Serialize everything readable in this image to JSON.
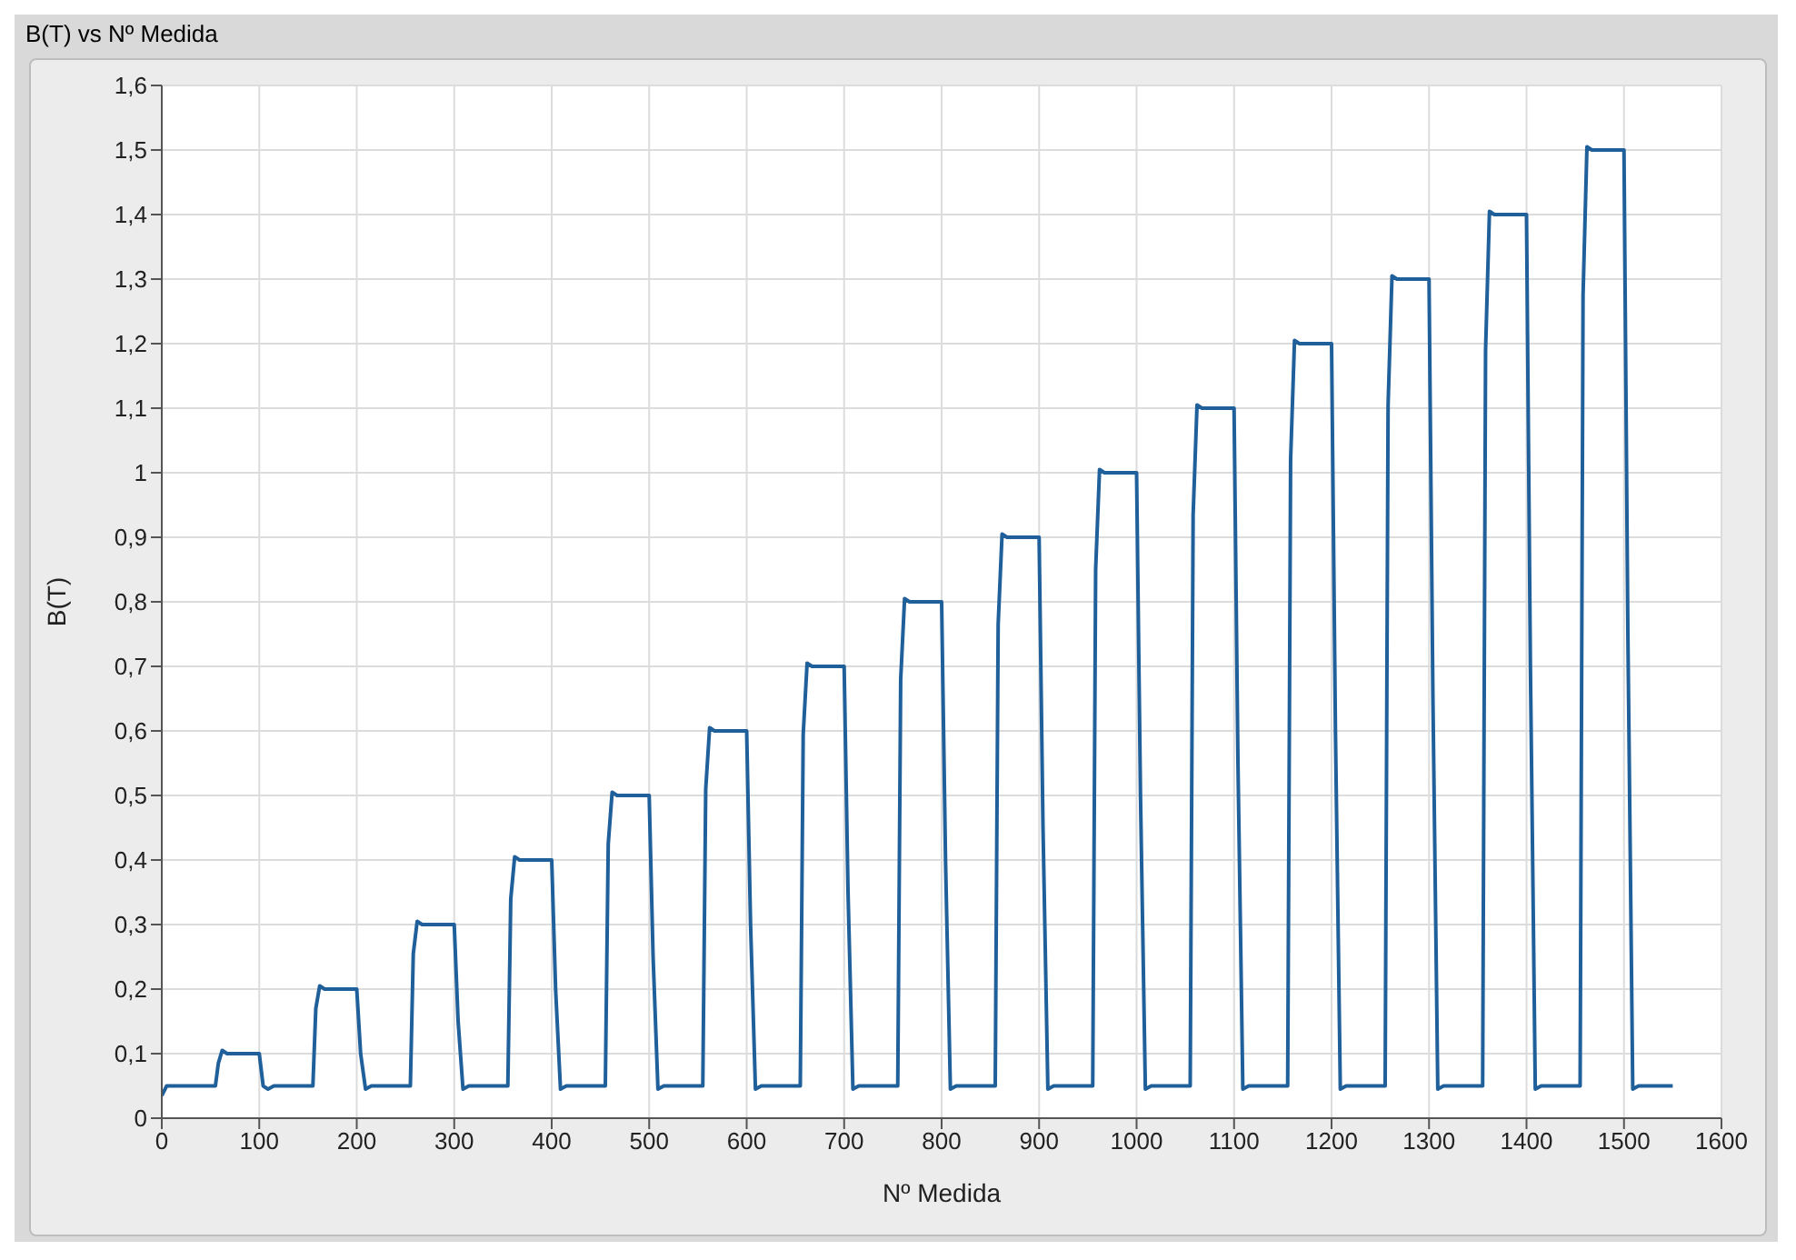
{
  "chart_data": {
    "type": "line",
    "title": "B(T) vs Nº Medida",
    "xlabel": "Nº Medida",
    "ylabel": "B(T)",
    "x": [
      0,
      5,
      55,
      58,
      62,
      67,
      100,
      104,
      109,
      115,
      155,
      158,
      162,
      167,
      200,
      204,
      209,
      215,
      255,
      258,
      262,
      267,
      300,
      304,
      309,
      315,
      355,
      358,
      362,
      367,
      400,
      404,
      409,
      415,
      455,
      458,
      462,
      467,
      500,
      504,
      509,
      515,
      555,
      558,
      562,
      567,
      600,
      604,
      609,
      615,
      655,
      658,
      662,
      667,
      700,
      704,
      709,
      715,
      755,
      758,
      762,
      767,
      800,
      804,
      809,
      815,
      855,
      858,
      862,
      867,
      900,
      904,
      909,
      915,
      955,
      958,
      962,
      967,
      1000,
      1004,
      1009,
      1015,
      1055,
      1058,
      1062,
      1067,
      1100,
      1104,
      1109,
      1115,
      1155,
      1158,
      1162,
      1167,
      1200,
      1204,
      1209,
      1215,
      1255,
      1258,
      1262,
      1267,
      1300,
      1304,
      1309,
      1315,
      1355,
      1358,
      1362,
      1367,
      1400,
      1404,
      1409,
      1415,
      1455,
      1458,
      1462,
      1467,
      1500,
      1504,
      1509,
      1515,
      1550
    ],
    "series": [
      {
        "color": "#1f5f9a",
        "values": [
          0.035,
          0.05,
          0.05,
          0.085,
          0.105,
          0.1,
          0.1,
          0.05,
          0.045,
          0.05,
          0.05,
          0.17,
          0.205,
          0.2,
          0.2,
          0.1,
          0.045,
          0.05,
          0.05,
          0.255,
          0.305,
          0.3,
          0.3,
          0.15,
          0.045,
          0.05,
          0.05,
          0.34,
          0.405,
          0.4,
          0.4,
          0.2,
          0.045,
          0.05,
          0.05,
          0.425,
          0.505,
          0.5,
          0.5,
          0.25,
          0.045,
          0.05,
          0.05,
          0.51,
          0.605,
          0.6,
          0.6,
          0.3,
          0.045,
          0.05,
          0.05,
          0.595,
          0.705,
          0.7,
          0.7,
          0.35,
          0.045,
          0.05,
          0.05,
          0.68,
          0.805,
          0.8,
          0.8,
          0.4,
          0.045,
          0.05,
          0.05,
          0.765,
          0.905,
          0.9,
          0.9,
          0.45,
          0.045,
          0.05,
          0.05,
          0.85,
          1.005,
          1,
          1,
          0.5,
          0.045,
          0.05,
          0.05,
          0.935,
          1.105,
          1.1,
          1.1,
          0.55,
          0.045,
          0.05,
          0.05,
          1.02,
          1.205,
          1.2,
          1.2,
          0.6,
          0.045,
          0.05,
          0.05,
          1.105,
          1.305,
          1.3,
          1.3,
          0.65,
          0.045,
          0.05,
          0.05,
          1.19,
          1.405,
          1.4,
          1.4,
          0.7,
          0.045,
          0.05,
          0.05,
          1.275,
          1.505,
          1.5,
          1.5,
          0.75,
          0.045,
          0.05,
          0.05
        ]
      }
    ],
    "xlim": [
      0,
      1600
    ],
    "xticks": [
      0,
      100,
      200,
      300,
      400,
      500,
      600,
      700,
      800,
      900,
      1000,
      1100,
      1200,
      1300,
      1400,
      1500,
      1600
    ],
    "ylim": [
      0,
      1.6
    ],
    "yticks": [
      0,
      {
        "value": 0.1,
        "label": "0,1"
      },
      {
        "value": 0.2,
        "label": "0,2"
      },
      {
        "value": 0.3,
        "label": "0,3"
      },
      {
        "value": 0.4,
        "label": "0,4"
      },
      {
        "value": 0.5,
        "label": "0,5"
      },
      {
        "value": 0.6,
        "label": "0,6"
      },
      {
        "value": 0.7,
        "label": "0,7"
      },
      {
        "value": 0.8,
        "label": "0,8"
      },
      {
        "value": 0.9,
        "label": "0,9"
      },
      1,
      {
        "value": 1.1,
        "label": "1,1"
      },
      {
        "value": 1.2,
        "label": "1,2"
      },
      {
        "value": 1.3,
        "label": "1,3"
      },
      {
        "value": 1.4,
        "label": "1,4"
      },
      {
        "value": 1.5,
        "label": "1,5"
      },
      {
        "value": 1.6,
        "label": "1,6"
      }
    ],
    "grid": true,
    "marker": "none",
    "line_style": "solid"
  }
}
